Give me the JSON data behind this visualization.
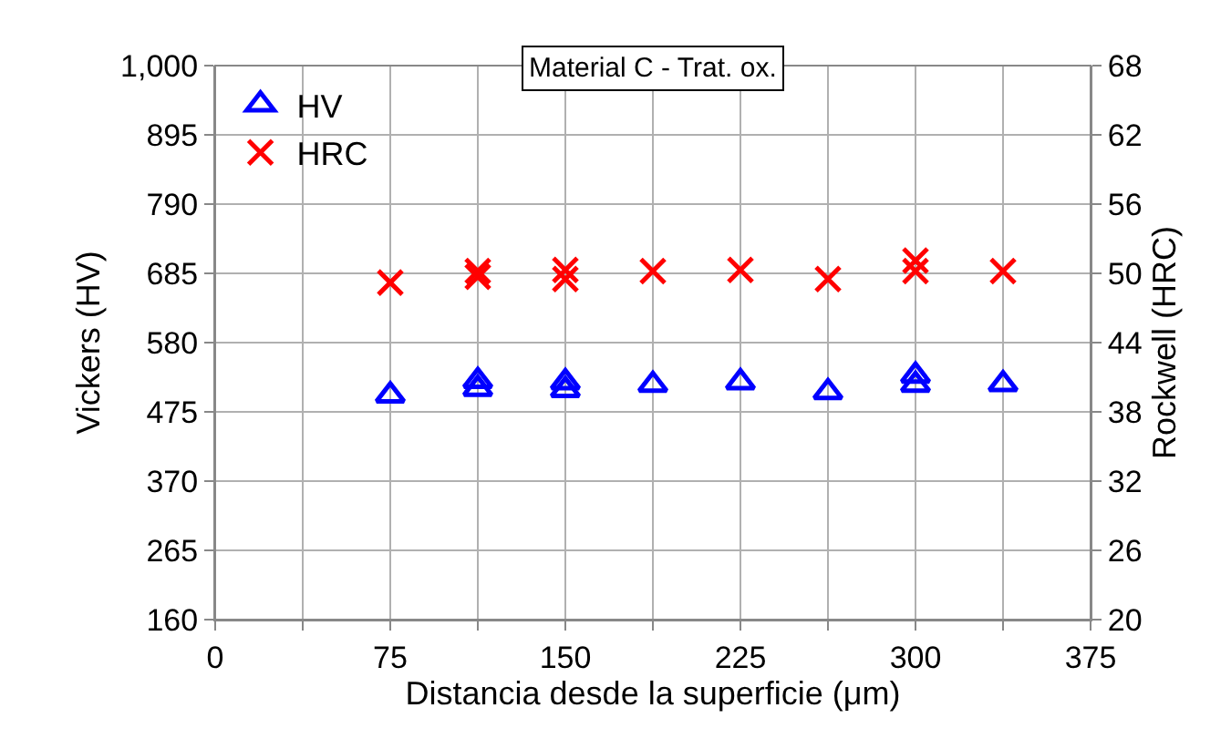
{
  "chart_data": {
    "type": "scatter",
    "title": "Material C - Trat. ox.",
    "xlabel": "Distancia desde la superficie (μm)",
    "ylabel": "Vickers (HV)",
    "y2label": "Rockwell (HRC)",
    "xlim": [
      0,
      375
    ],
    "xticks": [
      0,
      {
        "value": 37.5,
        "label": null
      },
      75,
      {
        "value": 112.5,
        "label": null
      },
      150,
      {
        "value": 187.5,
        "label": null
      },
      225,
      {
        "value": 262.5,
        "label": null
      },
      300,
      {
        "value": 337.5,
        "label": null
      },
      375
    ],
    "ylim": [
      160,
      1000
    ],
    "yticks": [
      160,
      265,
      370,
      475,
      580,
      685,
      790,
      895,
      {
        "value": 1000,
        "label": "1,000"
      }
    ],
    "y2lim": [
      20,
      68
    ],
    "y2ticks": [
      20,
      26,
      32,
      38,
      44,
      50,
      56,
      62,
      68
    ],
    "grid": true,
    "legend": "top left",
    "series": [
      {
        "name": "HV",
        "color": "#0000ff",
        "marker": "triangle",
        "x": [
          75,
          112.5,
          112.5,
          150,
          150,
          187.5,
          225,
          262.5,
          300,
          300,
          337.5
        ],
        "values": [
          500,
          510,
          522,
          508,
          520,
          516,
          520,
          505,
          530,
          516,
          517
        ]
      },
      {
        "name": "HRC",
        "color": "#ff0000",
        "marker": "cross",
        "axis": "y2",
        "x": [
          75,
          112.5,
          112.5,
          150,
          150,
          187.5,
          225,
          262.5,
          300,
          300,
          337.5
        ],
        "values": [
          49.2,
          50.2,
          49.7,
          50.3,
          49.5,
          50.2,
          50.3,
          49.5,
          51.1,
          50.2,
          50.2
        ]
      }
    ]
  }
}
